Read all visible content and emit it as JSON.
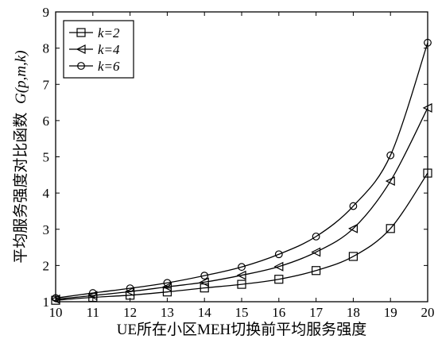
{
  "chart_data": {
    "type": "line",
    "xlabel": "UE所在小区MEH切换前平均服务强度",
    "ylabel": "平均服务强度对比函数",
    "ylabel_math": "G(p,m,k)",
    "x": [
      10,
      11,
      12,
      13,
      14,
      15,
      16,
      17,
      18,
      19,
      20
    ],
    "xlim": [
      10,
      20
    ],
    "ylim": [
      1,
      9
    ],
    "xticks": [
      "10",
      "11",
      "12",
      "13",
      "14",
      "15",
      "16",
      "17",
      "18",
      "19",
      "20"
    ],
    "yticks": [
      "1",
      "2",
      "3",
      "4",
      "5",
      "6",
      "7",
      "8",
      "9"
    ],
    "grid": false,
    "legend_position": "top-left",
    "series": [
      {
        "name": "k=2",
        "marker": "square",
        "values": [
          1.04,
          1.12,
          1.18,
          1.27,
          1.38,
          1.48,
          1.62,
          1.86,
          2.25,
          3.02,
          4.55
        ]
      },
      {
        "name": "k=4",
        "marker": "triangle-left",
        "values": [
          1.07,
          1.17,
          1.28,
          1.41,
          1.54,
          1.73,
          1.97,
          2.37,
          3.02,
          4.33,
          6.35
        ]
      },
      {
        "name": "k=6",
        "marker": "circle",
        "values": [
          1.1,
          1.24,
          1.37,
          1.52,
          1.72,
          1.96,
          2.31,
          2.8,
          3.64,
          5.04,
          8.15
        ]
      }
    ]
  }
}
